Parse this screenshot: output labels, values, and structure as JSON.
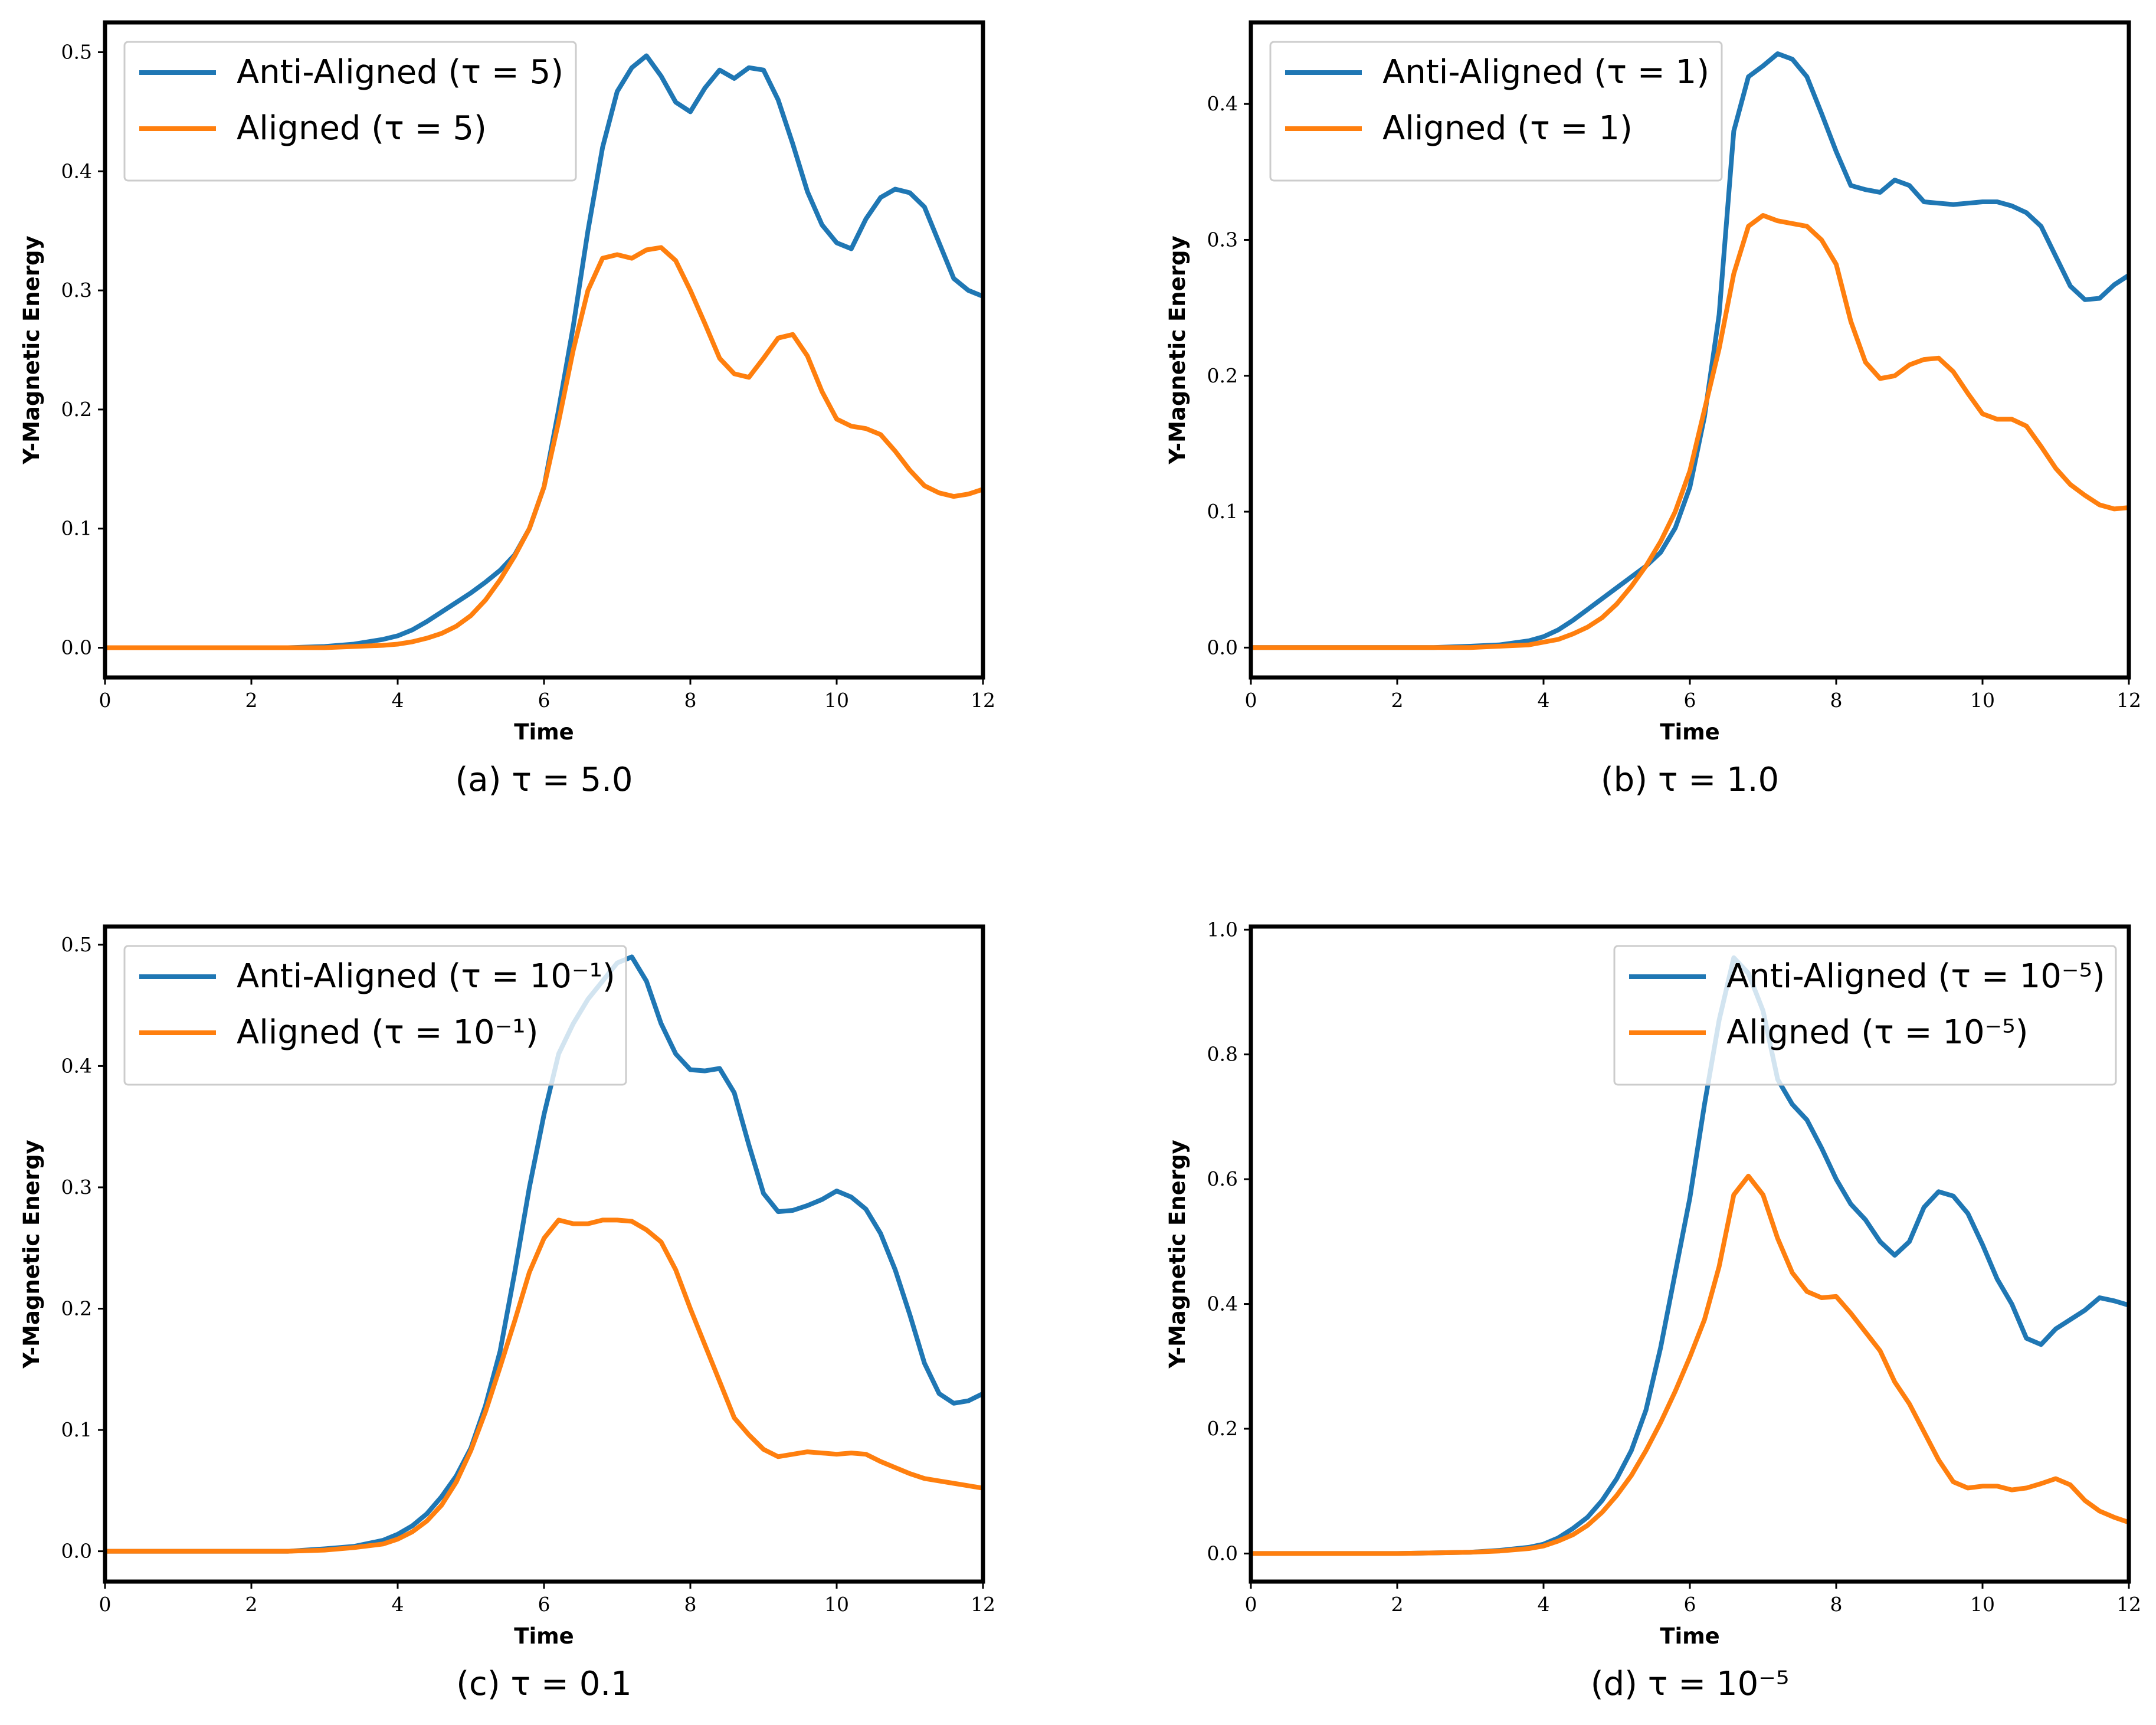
{
  "colors": {
    "anti": "#1f77b4",
    "aligned": "#ff7f0e"
  },
  "chart_data": [
    {
      "type": "line",
      "caption": "(a) τ = 5.0",
      "xlabel": "Time",
      "ylabel": "Y-Magnetic Energy",
      "xlim": [
        0,
        12
      ],
      "ylim": [
        -0.025,
        0.525
      ],
      "xticks": [
        0,
        2,
        4,
        6,
        8,
        10,
        12
      ],
      "yticks": [
        0.0,
        0.1,
        0.2,
        0.3,
        0.4,
        0.5
      ],
      "ytick_format": 1,
      "legend_position": "upper-left",
      "series": [
        {
          "name": "Anti-Aligned (τ = 5)",
          "x": [
            0,
            1,
            2,
            2.5,
            3,
            3.4,
            3.8,
            4,
            4.2,
            4.4,
            4.6,
            4.8,
            5,
            5.2,
            5.4,
            5.6,
            5.8,
            6,
            6.2,
            6.4,
            6.6,
            6.8,
            7,
            7.2,
            7.4,
            7.6,
            7.8,
            8,
            8.2,
            8.4,
            8.6,
            8.8,
            9,
            9.2,
            9.4,
            9.6,
            9.8,
            10,
            10.2,
            10.4,
            10.6,
            10.8,
            11,
            11.2,
            11.4,
            11.6,
            11.8,
            12
          ],
          "y": [
            0,
            0,
            0,
            0,
            0.001,
            0.003,
            0.007,
            0.01,
            0.015,
            0.022,
            0.03,
            0.038,
            0.046,
            0.055,
            0.065,
            0.078,
            0.1,
            0.135,
            0.2,
            0.27,
            0.35,
            0.42,
            0.467,
            0.487,
            0.497,
            0.48,
            0.458,
            0.45,
            0.47,
            0.485,
            0.478,
            0.487,
            0.485,
            0.46,
            0.423,
            0.383,
            0.355,
            0.34,
            0.335,
            0.36,
            0.378,
            0.385,
            0.382,
            0.37,
            0.34,
            0.31,
            0.3,
            0.295
          ]
        },
        {
          "name": "Aligned (τ = 5)",
          "x": [
            0,
            1,
            2,
            2.5,
            3,
            3.4,
            3.8,
            4,
            4.2,
            4.4,
            4.6,
            4.8,
            5,
            5.2,
            5.4,
            5.6,
            5.8,
            6,
            6.2,
            6.4,
            6.6,
            6.8,
            7,
            7.2,
            7.4,
            7.6,
            7.8,
            8,
            8.2,
            8.4,
            8.6,
            8.8,
            9,
            9.2,
            9.4,
            9.6,
            9.8,
            10,
            10.2,
            10.4,
            10.6,
            10.8,
            11,
            11.2,
            11.4,
            11.6,
            11.8,
            12
          ],
          "y": [
            0,
            0,
            0,
            0,
            0,
            0.001,
            0.002,
            0.003,
            0.005,
            0.008,
            0.012,
            0.018,
            0.027,
            0.04,
            0.057,
            0.077,
            0.1,
            0.135,
            0.19,
            0.25,
            0.3,
            0.327,
            0.33,
            0.327,
            0.334,
            0.336,
            0.325,
            0.3,
            0.272,
            0.243,
            0.23,
            0.227,
            0.243,
            0.26,
            0.263,
            0.245,
            0.215,
            0.192,
            0.186,
            0.184,
            0.179,
            0.165,
            0.149,
            0.136,
            0.13,
            0.127,
            0.129,
            0.133
          ]
        }
      ]
    },
    {
      "type": "line",
      "caption": "(b) τ = 1.0",
      "xlabel": "Time",
      "ylabel": "Y-Magnetic Energy",
      "xlim": [
        0,
        12
      ],
      "ylim": [
        -0.022,
        0.46
      ],
      "xticks": [
        0,
        2,
        4,
        6,
        8,
        10,
        12
      ],
      "yticks": [
        0.0,
        0.1,
        0.2,
        0.3,
        0.4
      ],
      "ytick_format": 1,
      "legend_position": "upper-left",
      "series": [
        {
          "name": "Anti-Aligned (τ = 1)",
          "x": [
            0,
            1,
            2,
            2.5,
            3,
            3.4,
            3.8,
            4,
            4.2,
            4.4,
            4.6,
            4.8,
            5,
            5.2,
            5.4,
            5.6,
            5.8,
            6,
            6.2,
            6.4,
            6.6,
            6.8,
            7,
            7.2,
            7.4,
            7.6,
            7.8,
            8,
            8.2,
            8.4,
            8.6,
            8.8,
            9,
            9.2,
            9.4,
            9.6,
            9.8,
            10,
            10.2,
            10.4,
            10.6,
            10.8,
            11,
            11.2,
            11.4,
            11.6,
            11.8,
            12
          ],
          "y": [
            0,
            0,
            0,
            0,
            0.001,
            0.002,
            0.005,
            0.008,
            0.013,
            0.02,
            0.028,
            0.036,
            0.044,
            0.052,
            0.06,
            0.07,
            0.088,
            0.118,
            0.17,
            0.245,
            0.38,
            0.42,
            0.428,
            0.437,
            0.433,
            0.42,
            0.393,
            0.365,
            0.34,
            0.337,
            0.335,
            0.344,
            0.34,
            0.328,
            0.327,
            0.326,
            0.327,
            0.328,
            0.328,
            0.325,
            0.32,
            0.31,
            0.288,
            0.266,
            0.256,
            0.257,
            0.267,
            0.274
          ]
        },
        {
          "name": "Aligned (τ = 1)",
          "x": [
            0,
            1,
            2,
            2.5,
            3,
            3.4,
            3.8,
            4,
            4.2,
            4.4,
            4.6,
            4.8,
            5,
            5.2,
            5.4,
            5.6,
            5.8,
            6,
            6.2,
            6.4,
            6.6,
            6.8,
            7,
            7.2,
            7.4,
            7.6,
            7.8,
            8,
            8.2,
            8.4,
            8.6,
            8.8,
            9,
            9.2,
            9.4,
            9.6,
            9.8,
            10,
            10.2,
            10.4,
            10.6,
            10.8,
            11,
            11.2,
            11.4,
            11.6,
            11.8,
            12
          ],
          "y": [
            0,
            0,
            0,
            0,
            0,
            0.001,
            0.002,
            0.004,
            0.006,
            0.01,
            0.015,
            0.022,
            0.032,
            0.045,
            0.06,
            0.078,
            0.1,
            0.13,
            0.175,
            0.22,
            0.275,
            0.31,
            0.318,
            0.314,
            0.312,
            0.31,
            0.3,
            0.282,
            0.24,
            0.21,
            0.198,
            0.2,
            0.208,
            0.212,
            0.213,
            0.203,
            0.187,
            0.172,
            0.168,
            0.168,
            0.163,
            0.148,
            0.132,
            0.12,
            0.112,
            0.105,
            0.102,
            0.103
          ]
        }
      ]
    },
    {
      "type": "line",
      "caption": "(c) τ = 0.1",
      "xlabel": "Time",
      "ylabel": "Y-Magnetic Energy",
      "xlim": [
        0,
        12
      ],
      "ylim": [
        -0.025,
        0.515
      ],
      "xticks": [
        0,
        2,
        4,
        6,
        8,
        10,
        12
      ],
      "yticks": [
        0.0,
        0.1,
        0.2,
        0.3,
        0.4,
        0.5
      ],
      "ytick_format": 1,
      "legend_position": "upper-left",
      "series": [
        {
          "name": "Anti-Aligned (τ = 10⁻¹)",
          "x": [
            0,
            1,
            2,
            2.5,
            3,
            3.4,
            3.8,
            4,
            4.2,
            4.4,
            4.6,
            4.8,
            5,
            5.2,
            5.4,
            5.6,
            5.8,
            6,
            6.2,
            6.4,
            6.6,
            6.8,
            7,
            7.2,
            7.4,
            7.6,
            7.8,
            8,
            8.2,
            8.4,
            8.6,
            8.8,
            9,
            9.2,
            9.4,
            9.6,
            9.8,
            10,
            10.2,
            10.4,
            10.6,
            10.8,
            11,
            11.2,
            11.4,
            11.6,
            11.8,
            12
          ],
          "y": [
            0,
            0,
            0,
            0,
            0.002,
            0.004,
            0.009,
            0.014,
            0.021,
            0.031,
            0.045,
            0.062,
            0.085,
            0.12,
            0.165,
            0.23,
            0.3,
            0.36,
            0.41,
            0.435,
            0.455,
            0.47,
            0.485,
            0.49,
            0.47,
            0.435,
            0.41,
            0.397,
            0.396,
            0.398,
            0.378,
            0.335,
            0.295,
            0.28,
            0.281,
            0.285,
            0.29,
            0.297,
            0.292,
            0.282,
            0.262,
            0.232,
            0.195,
            0.155,
            0.13,
            0.122,
            0.124,
            0.13
          ]
        },
        {
          "name": "Aligned (τ = 10⁻¹)",
          "x": [
            0,
            1,
            2,
            2.5,
            3,
            3.4,
            3.8,
            4,
            4.2,
            4.4,
            4.6,
            4.8,
            5,
            5.2,
            5.4,
            5.6,
            5.8,
            6,
            6.2,
            6.4,
            6.6,
            6.8,
            7,
            7.2,
            7.4,
            7.6,
            7.8,
            8,
            8.2,
            8.4,
            8.6,
            8.8,
            9,
            9.2,
            9.4,
            9.6,
            9.8,
            10,
            10.2,
            10.4,
            10.6,
            10.8,
            11,
            11.2,
            11.4,
            11.6,
            11.8,
            12
          ],
          "y": [
            0,
            0,
            0,
            0,
            0.001,
            0.003,
            0.006,
            0.01,
            0.016,
            0.025,
            0.038,
            0.057,
            0.083,
            0.115,
            0.152,
            0.19,
            0.23,
            0.258,
            0.273,
            0.27,
            0.27,
            0.273,
            0.273,
            0.272,
            0.265,
            0.255,
            0.232,
            0.2,
            0.17,
            0.14,
            0.11,
            0.096,
            0.084,
            0.078,
            0.08,
            0.082,
            0.081,
            0.08,
            0.081,
            0.08,
            0.074,
            0.069,
            0.064,
            0.06,
            0.058,
            0.056,
            0.054,
            0.052
          ]
        }
      ]
    },
    {
      "type": "line",
      "caption": "(d) τ = 10⁻⁵",
      "xlabel": "Time",
      "ylabel": "Y-Magnetic Energy",
      "xlim": [
        0,
        12
      ],
      "ylim": [
        -0.045,
        1.005
      ],
      "xticks": [
        0,
        2,
        4,
        6,
        8,
        10,
        12
      ],
      "yticks": [
        0.0,
        0.2,
        0.4,
        0.6,
        0.8,
        1.0
      ],
      "ytick_format": 1,
      "legend_position": "upper-right",
      "series": [
        {
          "name": "Anti-Aligned (τ = 10⁻⁵)",
          "x": [
            0,
            1,
            2,
            2.5,
            3,
            3.4,
            3.8,
            4,
            4.2,
            4.4,
            4.6,
            4.8,
            5,
            5.2,
            5.4,
            5.6,
            5.8,
            6,
            6.2,
            6.4,
            6.6,
            6.8,
            7,
            7.2,
            7.4,
            7.6,
            7.8,
            8,
            8.2,
            8.4,
            8.6,
            8.8,
            9,
            9.2,
            9.4,
            9.6,
            9.8,
            10,
            10.2,
            10.4,
            10.6,
            10.8,
            11,
            11.2,
            11.4,
            11.6,
            11.8,
            12
          ],
          "y": [
            0,
            0,
            0,
            0.001,
            0.002,
            0.005,
            0.01,
            0.015,
            0.025,
            0.04,
            0.058,
            0.085,
            0.12,
            0.165,
            0.23,
            0.33,
            0.45,
            0.57,
            0.72,
            0.855,
            0.955,
            0.93,
            0.87,
            0.76,
            0.72,
            0.695,
            0.65,
            0.6,
            0.56,
            0.535,
            0.5,
            0.478,
            0.5,
            0.555,
            0.58,
            0.573,
            0.545,
            0.495,
            0.44,
            0.4,
            0.345,
            0.335,
            0.36,
            0.375,
            0.39,
            0.41,
            0.405,
            0.398
          ]
        },
        {
          "name": "Aligned (τ = 10⁻⁵)",
          "x": [
            0,
            1,
            2,
            2.5,
            3,
            3.4,
            3.8,
            4,
            4.2,
            4.4,
            4.6,
            4.8,
            5,
            5.2,
            5.4,
            5.6,
            5.8,
            6,
            6.2,
            6.4,
            6.6,
            6.8,
            7,
            7.2,
            7.4,
            7.6,
            7.8,
            8,
            8.2,
            8.4,
            8.6,
            8.8,
            9,
            9.2,
            9.4,
            9.6,
            9.8,
            10,
            10.2,
            10.4,
            10.6,
            10.8,
            11,
            11.2,
            11.4,
            11.6,
            11.8,
            12
          ],
          "y": [
            0,
            0,
            0,
            0.001,
            0.002,
            0.004,
            0.008,
            0.012,
            0.02,
            0.03,
            0.045,
            0.066,
            0.093,
            0.125,
            0.165,
            0.21,
            0.26,
            0.315,
            0.375,
            0.46,
            0.575,
            0.605,
            0.575,
            0.505,
            0.45,
            0.42,
            0.41,
            0.412,
            0.385,
            0.355,
            0.325,
            0.275,
            0.24,
            0.195,
            0.15,
            0.115,
            0.105,
            0.108,
            0.108,
            0.102,
            0.105,
            0.112,
            0.12,
            0.11,
            0.085,
            0.068,
            0.058,
            0.05
          ]
        }
      ]
    }
  ]
}
